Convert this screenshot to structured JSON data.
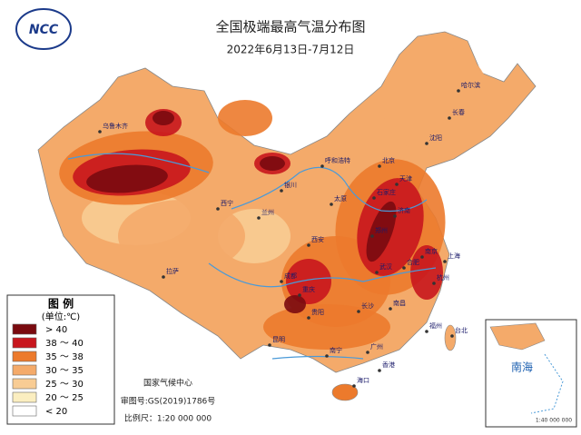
{
  "header": {
    "title": "全国极端最高气温分布图",
    "subtitle": "2022年6月13日-7月12日",
    "logo": "NCC"
  },
  "legend": {
    "title": "图 例",
    "unit": "(单位:℃)",
    "items": [
      {
        "label": "> 40",
        "color": "#7a0a0f"
      },
      {
        "label": "38 ～ 40",
        "color": "#c8161d"
      },
      {
        "label": "35 ～ 38",
        "color": "#ec7a2c"
      },
      {
        "label": "30 ～ 35",
        "color": "#f4aa6a"
      },
      {
        "label": "25 ～ 30",
        "color": "#f8cc94"
      },
      {
        "label": "20 ～ 25",
        "color": "#fbeec0"
      },
      {
        "label": "< 20",
        "color": "#ffffff"
      }
    ]
  },
  "credits": {
    "agency": "国家气候中心",
    "approval": "审图号:GS(2019)1786号",
    "scale": "比例尺：1:20 000 000"
  },
  "inset": {
    "label": "南海",
    "scale": "1:40 000 000"
  },
  "cities": [
    "乌鲁木齐",
    "拉萨",
    "西宁",
    "兰州",
    "银川",
    "呼和浩特",
    "北京",
    "天津",
    "石家庄",
    "太原",
    "济南",
    "郑州",
    "西安",
    "武汉",
    "合肥",
    "南京",
    "上海",
    "杭州",
    "长沙",
    "南昌",
    "福州",
    "台北",
    "广州",
    "香港",
    "南宁",
    "海口",
    "贵阳",
    "昆明",
    "成都",
    "重庆",
    "沈阳",
    "长春",
    "哈尔滨"
  ]
}
